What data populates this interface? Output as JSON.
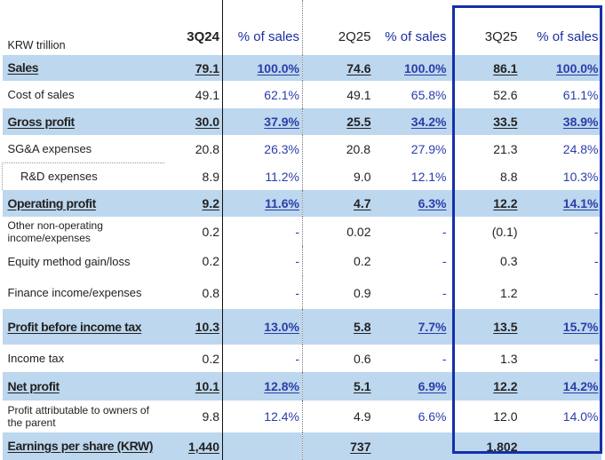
{
  "header": {
    "unit": "KRW trillion",
    "columns": [
      "3Q24",
      "% of sales",
      "2Q25",
      "% of sales",
      "3Q25",
      "% of sales"
    ]
  },
  "colors": {
    "band": "#bdd7ee",
    "accent": "#1530a8",
    "percent_text": "#2a3da8"
  },
  "rows": [
    {
      "label": "Sales",
      "values": [
        "79.1",
        "100.0%",
        "74.6",
        "100.0%",
        "86.1",
        "100.0%"
      ],
      "bold": true,
      "h": 29
    },
    {
      "label": "Cost of sales",
      "values": [
        "49.1",
        "62.1%",
        "49.1",
        "65.8%",
        "52.6",
        "61.1%"
      ],
      "h": 31
    },
    {
      "label": "Gross profit",
      "values": [
        "30.0",
        "37.9%",
        "25.5",
        "34.2%",
        "33.5",
        "38.9%"
      ],
      "bold": true,
      "h": 30
    },
    {
      "label": "SG&A expenses",
      "values": [
        "20.8",
        "26.3%",
        "20.8",
        "27.9%",
        "21.3",
        "24.8%"
      ],
      "h": 31
    },
    {
      "label": "R&D expenses",
      "values": [
        "8.9",
        "11.2%",
        "9.0",
        "12.1%",
        "8.8",
        "10.3%"
      ],
      "indent": true,
      "h": 31
    },
    {
      "label": "Operating profit",
      "values": [
        "9.2",
        "11.6%",
        "4.7",
        "6.3%",
        "12.2",
        "14.1%"
      ],
      "bold": true,
      "h": 30
    },
    {
      "label": "Other non-operating income/expenses",
      "values": [
        "0.2",
        "-",
        "0.02",
        "-",
        "(0.1)",
        "-"
      ],
      "small": true,
      "h": 33
    },
    {
      "label": "Equity method gain/loss",
      "values": [
        "0.2",
        "-",
        "0.2",
        "-",
        "0.3",
        "-"
      ],
      "h": 34
    },
    {
      "label": "Finance income/expenses",
      "values": [
        "0.8",
        "-",
        "0.9",
        "-",
        "1.2",
        "-"
      ],
      "h": 37
    },
    {
      "label": "Profit before income tax",
      "values": [
        "10.3",
        "13.0%",
        "5.8",
        "7.7%",
        "13.5",
        "15.7%"
      ],
      "bold": true,
      "h": 40
    },
    {
      "label": "Income tax",
      "values": [
        "0.2",
        "-",
        "0.6",
        "-",
        "1.3",
        "-"
      ],
      "h": 31
    },
    {
      "label": "Net profit",
      "values": [
        "10.1",
        "12.8%",
        "5.1",
        "6.9%",
        "12.2",
        "14.2%"
      ],
      "bold": true,
      "h": 32
    },
    {
      "label": "Profit attributable to owners of the parent",
      "values": [
        "9.8",
        "12.4%",
        "4.9",
        "6.6%",
        "12.0",
        "14.0%"
      ],
      "small": true,
      "h": 36
    },
    {
      "label": "Earnings per share (KRW)",
      "values": [
        "1,440",
        "",
        "737",
        "",
        "1,802",
        ""
      ],
      "bold": true,
      "h": 31
    }
  ]
}
